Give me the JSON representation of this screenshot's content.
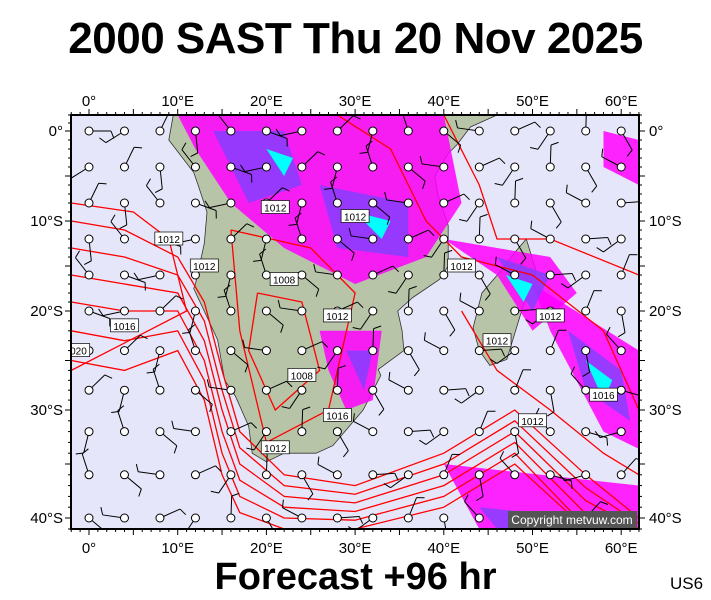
{
  "title": "2000 SAST Thu 20 Nov 2025",
  "footer": "Forecast +96 hr",
  "model_code": "US6",
  "copyright": "Copyright metvuw.com",
  "axes": {
    "lon_ticks": [
      {
        "v": 0,
        "label": "0°"
      },
      {
        "v": 10,
        "label": "10°E"
      },
      {
        "v": 20,
        "label": "20°E"
      },
      {
        "v": 30,
        "label": "30°E"
      },
      {
        "v": 40,
        "label": "40°E"
      },
      {
        "v": 50,
        "label": "50°E"
      },
      {
        "v": 60,
        "label": "60°E"
      }
    ],
    "lat_ticks": [
      {
        "v": 0,
        "label": "0°"
      },
      {
        "v": -10,
        "label": "10°S"
      },
      {
        "v": -20,
        "label": "20°S"
      },
      {
        "v": -30,
        "label": "30°S"
      },
      {
        "v": -40,
        "label": "40°S"
      }
    ],
    "lon_range": [
      -2,
      62
    ],
    "lat_range": [
      -41,
      2
    ]
  },
  "isobar_labels": [
    "1012",
    "1012",
    "1012",
    "1008",
    "1012",
    "1016",
    "1020",
    "1012",
    "1008",
    "1016",
    "1012",
    "1012",
    "1012",
    "1012",
    "1016",
    "1012"
  ],
  "colors": {
    "ocean": "#e6e6fa",
    "land": "#b8c4a8",
    "isobar": "#ff0000",
    "rain_light": "#ff00ff",
    "rain_mid": "#8040ff",
    "rain_heavy": "#0000ff",
    "rain_max": "#00ffff"
  }
}
